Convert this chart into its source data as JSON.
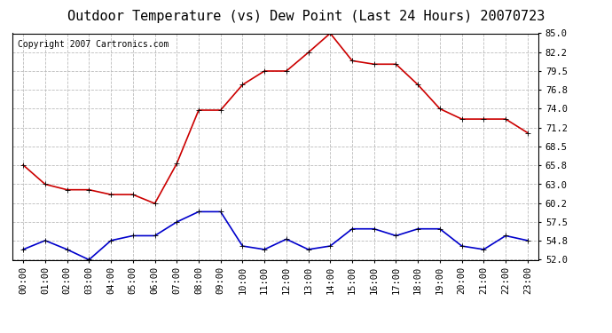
{
  "title": "Outdoor Temperature (vs) Dew Point (Last 24 Hours) 20070723",
  "copyright": "Copyright 2007 Cartronics.com",
  "hours": [
    "00:00",
    "01:00",
    "02:00",
    "03:00",
    "04:00",
    "05:00",
    "06:00",
    "07:00",
    "08:00",
    "09:00",
    "10:00",
    "11:00",
    "12:00",
    "13:00",
    "14:00",
    "15:00",
    "16:00",
    "17:00",
    "18:00",
    "19:00",
    "20:00",
    "21:00",
    "22:00",
    "23:00"
  ],
  "temp": [
    65.8,
    63.0,
    62.2,
    62.2,
    61.5,
    61.5,
    60.2,
    66.0,
    73.8,
    73.8,
    77.5,
    79.5,
    79.5,
    82.2,
    85.0,
    81.0,
    80.5,
    80.5,
    77.5,
    74.0,
    72.5,
    72.5,
    72.5,
    70.5
  ],
  "dew": [
    53.5,
    54.8,
    53.5,
    52.0,
    54.8,
    55.5,
    55.5,
    57.5,
    59.0,
    59.0,
    54.0,
    53.5,
    55.0,
    53.5,
    54.0,
    56.5,
    56.5,
    55.5,
    56.5,
    56.5,
    54.0,
    53.5,
    55.5,
    54.8
  ],
  "temp_color": "#cc0000",
  "dew_color": "#0000cc",
  "background_color": "#ffffff",
  "plot_bg_color": "#ffffff",
  "grid_color": "#bbbbbb",
  "ylim": [
    52.0,
    85.0
  ],
  "yticks": [
    52.0,
    54.8,
    57.5,
    60.2,
    63.0,
    65.8,
    68.5,
    71.2,
    74.0,
    76.8,
    79.5,
    82.2,
    85.0
  ],
  "title_fontsize": 11,
  "copyright_fontsize": 7,
  "tick_fontsize": 7.5,
  "marker": "+",
  "marker_size": 5,
  "linewidth": 1.2
}
